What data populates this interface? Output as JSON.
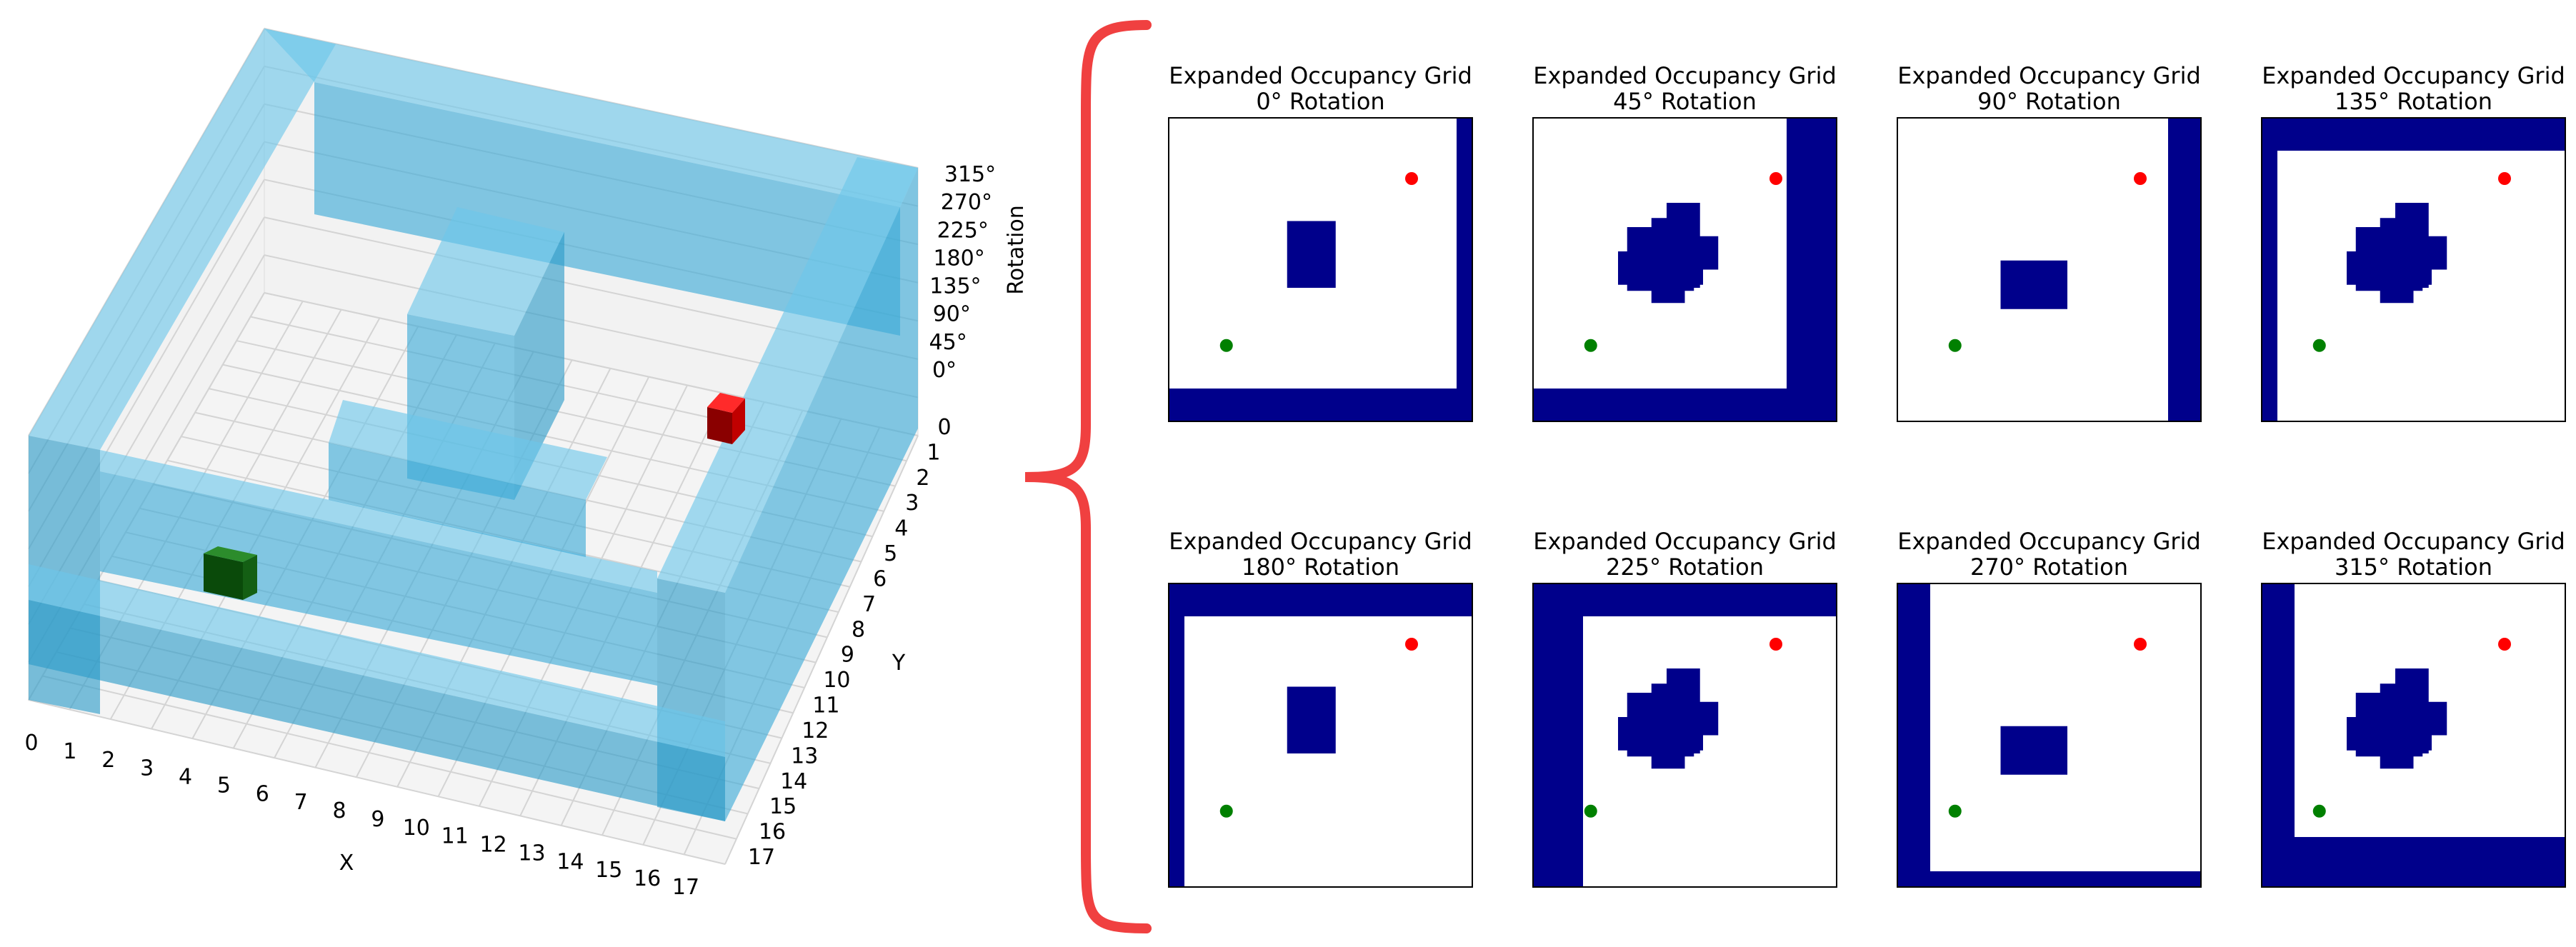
{
  "voxel_plot": {
    "x_axis": {
      "label": "X",
      "ticks": [
        "0",
        "1",
        "2",
        "3",
        "4",
        "5",
        "6",
        "7",
        "8",
        "9",
        "10",
        "11",
        "12",
        "13",
        "14",
        "15",
        "16",
        "17"
      ]
    },
    "y_axis": {
      "label": "Y",
      "ticks": [
        "0",
        "1",
        "2",
        "3",
        "4",
        "5",
        "6",
        "7",
        "8",
        "9",
        "10",
        "11",
        "12",
        "13",
        "14",
        "15",
        "16",
        "17"
      ]
    },
    "z_axis": {
      "label": "Rotation",
      "ticks": [
        "0°",
        "45°",
        "90°",
        "135°",
        "180°",
        "225°",
        "270°",
        "315°"
      ]
    },
    "colors": {
      "obstacle": "#3aa9d6",
      "start": "#1e7a1e",
      "goal": "#d40000",
      "pane": "#f2f2f2",
      "grid": "#d4d4d4"
    }
  },
  "bracket": {
    "color": "#f04040"
  },
  "grids": [
    {
      "title": "Expanded Occupancy Grid",
      "subtitle": "0° Rotation"
    },
    {
      "title": "Expanded Occupancy Grid",
      "subtitle": "45° Rotation"
    },
    {
      "title": "Expanded Occupancy Grid",
      "subtitle": "90° Rotation"
    },
    {
      "title": "Expanded Occupancy Grid",
      "subtitle": "135° Rotation"
    },
    {
      "title": "Expanded Occupancy Grid",
      "subtitle": "180° Rotation"
    },
    {
      "title": "Expanded Occupancy Grid",
      "subtitle": "225° Rotation"
    },
    {
      "title": "Expanded Occupancy Grid",
      "subtitle": "270° Rotation"
    },
    {
      "title": "Expanded Occupancy Grid",
      "subtitle": "315° Rotation"
    }
  ],
  "grid_colors": {
    "occupied": "#00008b",
    "free": "#ffffff",
    "start": "#008000",
    "goal": "#ff0000"
  }
}
